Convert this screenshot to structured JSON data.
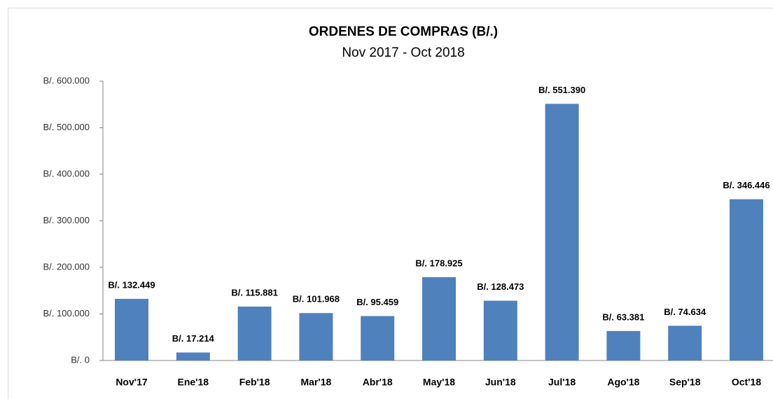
{
  "chart_data": {
    "type": "bar",
    "title": "ORDENES DE COMPRAS (B/.)",
    "subtitle": "Nov 2017 - Oct 2018",
    "categories": [
      "Nov'17",
      "Ene'18",
      "Feb'18",
      "Mar'18",
      "Abr'18",
      "May'18",
      "Jun'18",
      "Jul'18",
      "Ago'18",
      "Sep'18",
      "Oct'18"
    ],
    "values": [
      132449,
      17214,
      115881,
      101968,
      95459,
      178925,
      128473,
      551390,
      63381,
      74634,
      346446
    ],
    "value_labels": [
      "B/. 132.449",
      "B/. 17.214",
      "B/. 115.881",
      "B/. 101.968",
      "B/. 95.459",
      "B/. 178.925",
      "B/. 128.473",
      "B/. 551.390",
      "B/. 63.381",
      "B/. 74.634",
      "B/. 346.446"
    ],
    "color": "#4f81bd",
    "ylim": [
      0,
      600000
    ],
    "yticks": [
      {
        "value": 0,
        "label": "B/. 0"
      },
      {
        "value": 100000,
        "label": "B/. 100.000"
      },
      {
        "value": 200000,
        "label": "B/. 200.000"
      },
      {
        "value": 300000,
        "label": "B/. 300.000"
      },
      {
        "value": 400000,
        "label": "B/. 400.000"
      },
      {
        "value": 500000,
        "label": "B/. 500.000"
      },
      {
        "value": 600000,
        "label": "B/. 600.000"
      }
    ],
    "grid": false
  }
}
